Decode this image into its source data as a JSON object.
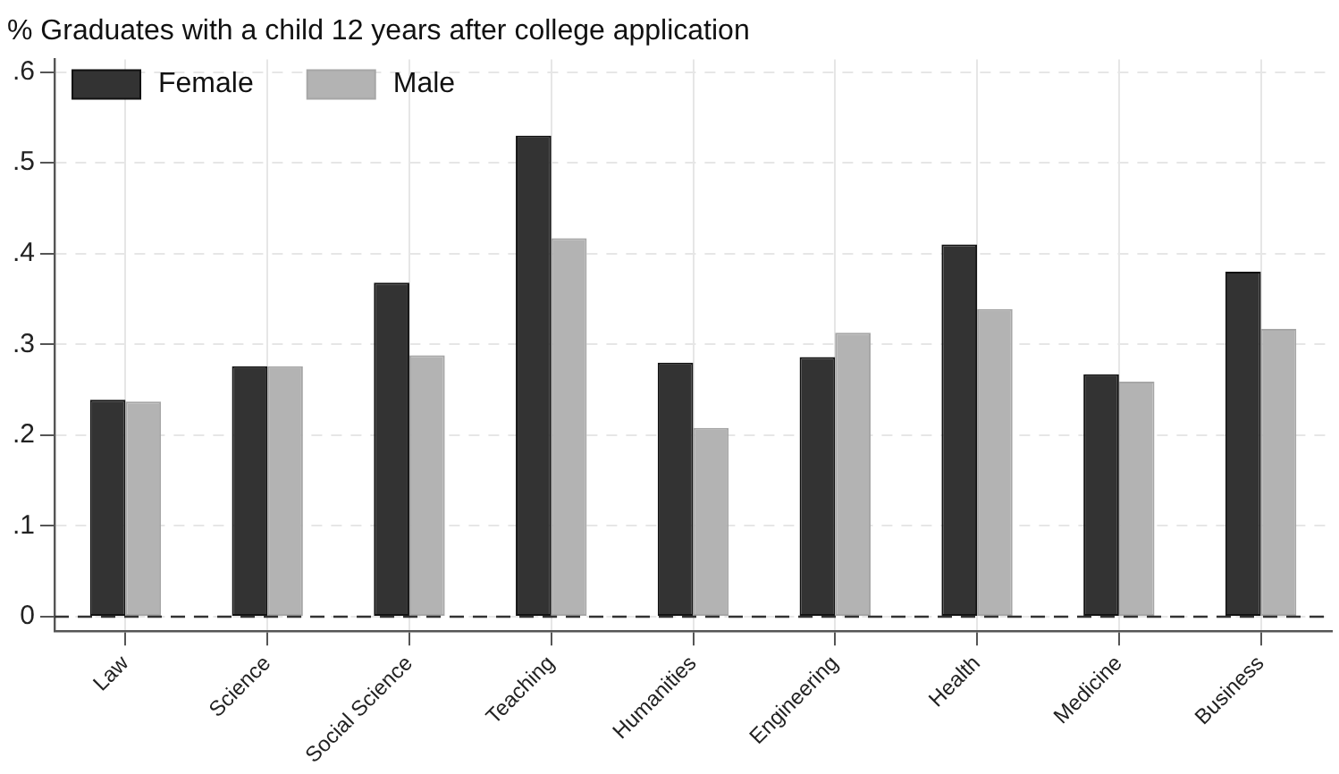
{
  "chart_data": {
    "type": "bar",
    "title": "% Graduates with a child 12 years after college application",
    "categories": [
      "Law",
      "Science",
      "Social Science",
      "Teaching",
      "Humanities",
      "Engineering",
      "Health",
      "Medicine",
      "Business"
    ],
    "series": [
      {
        "name": "Female",
        "color": "#333333",
        "values": [
          0.239,
          0.276,
          0.368,
          0.53,
          0.28,
          0.286,
          0.41,
          0.267,
          0.38
        ]
      },
      {
        "name": "Male",
        "color": "#b3b3b3",
        "values": [
          0.237,
          0.276,
          0.288,
          0.417,
          0.208,
          0.313,
          0.339,
          0.259,
          0.317
        ]
      }
    ],
    "ylim": [
      -0.016,
      0.614
    ],
    "yticks": [
      {
        "value": 0,
        "label": "0"
      },
      {
        "value": 0.1,
        "label": ".1"
      },
      {
        "value": 0.2,
        "label": ".2"
      },
      {
        "value": 0.3,
        "label": ".3"
      },
      {
        "value": 0.4,
        "label": ".4"
      },
      {
        "value": 0.5,
        "label": ".5"
      },
      {
        "value": 0.6,
        "label": ".6"
      }
    ],
    "ref_lines": [
      {
        "axis": "y",
        "value": 0,
        "label": null,
        "color": "#333333",
        "line_style": "dashed"
      }
    ],
    "grid": true,
    "legend": "top left"
  }
}
